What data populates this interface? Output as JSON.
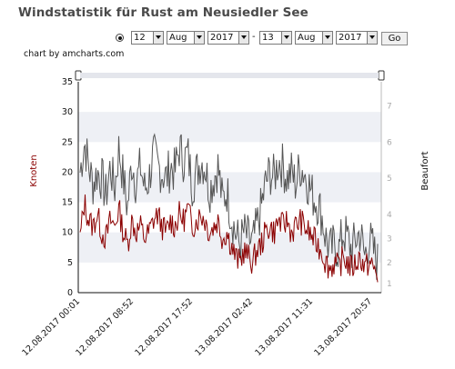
{
  "header": {
    "title": "Windstatistik für Rust am Neusiedler See"
  },
  "controls": {
    "from_day": "12",
    "from_month": "Aug",
    "from_year": "2017",
    "separator": "-",
    "to_day": "13",
    "to_month": "Aug",
    "to_year": "2017",
    "go_label": "Go"
  },
  "credit": "chart by amcharts.com",
  "colors": {
    "knots": "#8b0000",
    "beaufort": "#555555",
    "band": "#eef0f5"
  },
  "chart_data": {
    "type": "line",
    "ylabel": "Knoten",
    "y2label": "Beaufort",
    "ylim": [
      0,
      35
    ],
    "yticks": [
      "0",
      "5",
      "10",
      "15",
      "20",
      "25",
      "30",
      "35"
    ],
    "y2ticks": [
      "1",
      "2",
      "3",
      "4",
      "5",
      "6",
      "7"
    ],
    "xticks": [
      "12.08.2017 00:01",
      "12.08.2017 08:52",
      "12.08.2017 17:52",
      "13.08.2017 02:42",
      "13.08.2017 11:31",
      "13.08.2017 20:57"
    ],
    "series": [
      {
        "name": "Knoten",
        "color": "#8b0000",
        "values": [
          9,
          15,
          12,
          11,
          13,
          10,
          9,
          12,
          11,
          14,
          10,
          8,
          12,
          10,
          11,
          9,
          10,
          12,
          13,
          11,
          10,
          12,
          11,
          13,
          12,
          14,
          11,
          12,
          13,
          12,
          10,
          11,
          12,
          9,
          10,
          8,
          6,
          5,
          7,
          6,
          5,
          7,
          8,
          10,
          11,
          10,
          12,
          11,
          12,
          10,
          11,
          12,
          11,
          10,
          9,
          8,
          7,
          5,
          4,
          5,
          4,
          6,
          5,
          4,
          5,
          6,
          4,
          5,
          4,
          3
        ]
      },
      {
        "name": "Beaufort",
        "color": "#555555",
        "values": [
          20,
          25,
          21,
          18,
          20,
          19,
          16,
          21,
          17,
          24,
          19,
          14,
          22,
          18,
          21,
          17,
          19,
          23,
          21,
          20,
          19,
          21,
          20,
          24,
          22,
          23,
          18,
          20,
          22,
          21,
          17,
          19,
          21,
          15,
          17,
          13,
          10,
          8,
          10,
          9,
          8,
          11,
          14,
          18,
          20,
          19,
          22,
          21,
          19,
          20,
          18,
          21,
          20,
          18,
          16,
          15,
          13,
          9,
          7,
          8,
          7,
          10,
          9,
          7,
          9,
          10,
          6,
          9,
          7,
          5
        ]
      }
    ]
  }
}
